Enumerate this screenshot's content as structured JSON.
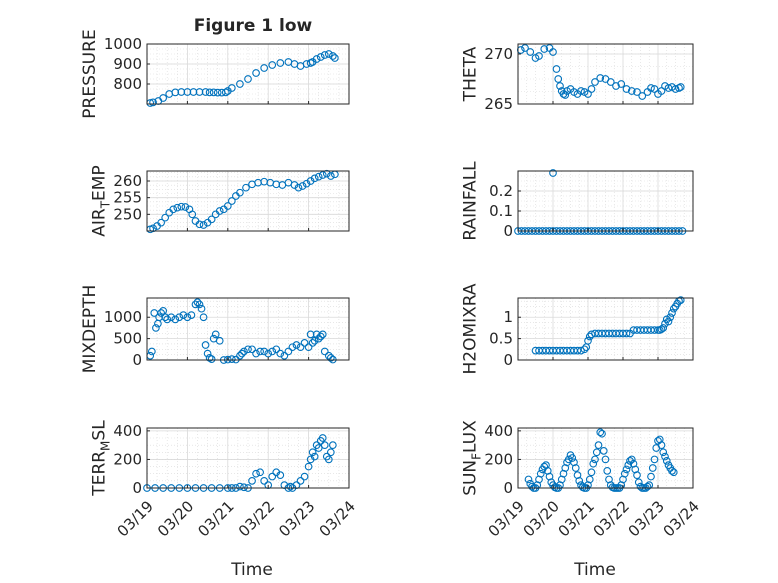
{
  "figure": {
    "title": "Figure 1 low",
    "xlabel_left": "Time",
    "xlabel_right": "Time",
    "x_tick_labels": [
      "03/19",
      "03/20",
      "03/21",
      "03/22",
      "03/23",
      "03/24"
    ],
    "marker_color": "#0072BD",
    "grid_color": "#d9d9d9"
  },
  "chart_data": [
    {
      "type": "scatter",
      "ylabel": "PRESSURE",
      "ylim": [
        700,
        1000
      ],
      "yticks": [
        800,
        900,
        1000
      ],
      "x": [
        0.08,
        0.15,
        0.28,
        0.4,
        0.55,
        0.7,
        0.85,
        1.0,
        1.15,
        1.3,
        1.45,
        1.55,
        1.65,
        1.75,
        1.85,
        1.95,
        2.0,
        2.1,
        2.3,
        2.5,
        2.7,
        2.9,
        3.1,
        3.3,
        3.5,
        3.65,
        3.8,
        3.95,
        4.05,
        4.1,
        4.2,
        4.3,
        4.4,
        4.5,
        4.6,
        4.65
      ],
      "y": [
        705,
        708,
        715,
        730,
        750,
        758,
        760,
        760,
        760,
        760,
        760,
        758,
        758,
        757,
        757,
        758,
        765,
        780,
        800,
        825,
        855,
        880,
        895,
        905,
        910,
        900,
        890,
        900,
        905,
        910,
        925,
        935,
        945,
        950,
        940,
        930
      ]
    },
    {
      "type": "scatter",
      "ylabel": "THETA",
      "ylim": [
        265,
        271
      ],
      "yticks": [
        265,
        270
      ],
      "x": [
        0.08,
        0.2,
        0.35,
        0.5,
        0.6,
        0.75,
        0.9,
        1.0,
        1.1,
        1.15,
        1.2,
        1.25,
        1.3,
        1.35,
        1.4,
        1.5,
        1.6,
        1.7,
        1.8,
        1.9,
        2.0,
        2.1,
        2.2,
        2.35,
        2.5,
        2.65,
        2.8,
        2.95,
        3.1,
        3.25,
        3.4,
        3.55,
        3.7,
        3.8,
        3.9,
        4.0,
        4.1,
        4.2,
        4.3,
        4.4,
        4.5,
        4.6,
        4.65
      ],
      "y": [
        270.4,
        270.6,
        270.2,
        269.6,
        269.8,
        270.5,
        270.6,
        270.2,
        268.5,
        267.5,
        266.8,
        266.3,
        266.0,
        265.9,
        266.3,
        266.5,
        266.2,
        266.0,
        266.3,
        266.2,
        266.0,
        266.5,
        267.2,
        267.6,
        267.5,
        267.2,
        266.8,
        267.0,
        266.5,
        266.3,
        266.2,
        265.8,
        266.2,
        266.6,
        266.5,
        266.0,
        266.3,
        266.8,
        266.6,
        266.7,
        266.5,
        266.6,
        266.7
      ]
    },
    {
      "type": "scatter",
      "ylabel": "AIR_TEMP",
      "ylim": [
        245,
        263
      ],
      "yticks": [
        250,
        255,
        260
      ],
      "x": [
        0.08,
        0.15,
        0.25,
        0.35,
        0.45,
        0.55,
        0.65,
        0.75,
        0.85,
        0.95,
        1.05,
        1.12,
        1.2,
        1.3,
        1.4,
        1.5,
        1.6,
        1.7,
        1.8,
        1.9,
        2.0,
        2.1,
        2.2,
        2.3,
        2.45,
        2.6,
        2.75,
        2.9,
        3.05,
        3.2,
        3.35,
        3.5,
        3.65,
        3.75,
        3.85,
        3.95,
        4.05,
        4.15,
        4.25,
        4.35,
        4.45,
        4.55,
        4.65
      ],
      "y": [
        245.5,
        245.8,
        246.5,
        247.5,
        249.0,
        250.5,
        251.5,
        252.0,
        252.3,
        252.2,
        251.5,
        250.0,
        248.0,
        247.0,
        246.8,
        247.5,
        248.5,
        250.0,
        251.0,
        251.5,
        252.5,
        254.0,
        255.5,
        256.5,
        258.0,
        259.0,
        259.5,
        259.8,
        259.5,
        259.0,
        258.8,
        259.5,
        258.8,
        258.0,
        258.5,
        259.2,
        260.0,
        260.8,
        261.3,
        261.8,
        262.2,
        261.5,
        262.0
      ]
    },
    {
      "type": "scatter",
      "ylabel": "RAINFALL",
      "ylim": [
        0,
        0.3
      ],
      "yticks": [
        0,
        0.1,
        0.2
      ],
      "x": [
        0.0,
        0.1,
        0.2,
        0.3,
        0.4,
        0.5,
        0.6,
        0.7,
        0.8,
        0.9,
        1.0,
        1.1,
        1.2,
        1.3,
        1.4,
        1.5,
        1.6,
        1.7,
        1.8,
        1.9,
        2.0,
        2.1,
        2.2,
        2.3,
        2.4,
        2.5,
        2.6,
        2.7,
        2.8,
        2.9,
        3.0,
        3.1,
        3.2,
        3.3,
        3.4,
        3.5,
        3.6,
        3.7,
        3.8,
        3.9,
        4.0,
        4.1,
        4.2,
        4.3,
        4.4,
        4.5,
        4.6,
        4.7,
        1.0
      ],
      "y": [
        0,
        0,
        0,
        0,
        0,
        0,
        0,
        0,
        0,
        0,
        0,
        0,
        0,
        0,
        0,
        0,
        0,
        0,
        0,
        0,
        0,
        0,
        0,
        0,
        0,
        0,
        0,
        0,
        0,
        0,
        0,
        0,
        0,
        0,
        0,
        0,
        0,
        0,
        0,
        0,
        0,
        0,
        0,
        0,
        0,
        0,
        0,
        0,
        0.29
      ]
    },
    {
      "type": "scatter",
      "ylabel": "MIXDEPTH",
      "ylim": [
        0,
        1450
      ],
      "yticks": [
        0,
        500,
        1000
      ],
      "x": [
        0.08,
        0.12,
        0.18,
        0.22,
        0.27,
        0.3,
        0.35,
        0.4,
        0.45,
        0.5,
        0.6,
        0.7,
        0.8,
        0.9,
        1.0,
        1.1,
        1.2,
        1.25,
        1.3,
        1.35,
        1.4,
        1.45,
        1.5,
        1.55,
        1.6,
        1.65,
        1.7,
        1.8,
        1.9,
        2.0,
        2.1,
        2.2,
        2.3,
        2.35,
        2.4,
        2.5,
        2.6,
        2.7,
        2.8,
        2.9,
        3.0,
        3.1,
        3.2,
        3.3,
        3.4,
        3.5,
        3.6,
        3.7,
        3.8,
        3.9,
        4.0,
        4.05,
        4.1,
        4.15,
        4.2,
        4.25,
        4.3,
        4.35,
        4.4,
        4.5,
        4.55,
        4.6
      ],
      "y": [
        100,
        200,
        1100,
        750,
        850,
        1000,
        1100,
        1150,
        1000,
        950,
        1000,
        950,
        1000,
        1050,
        1000,
        1050,
        1300,
        1350,
        1300,
        1200,
        1000,
        350,
        150,
        50,
        20,
        500,
        600,
        450,
        0,
        10,
        20,
        10,
        100,
        150,
        200,
        250,
        250,
        150,
        200,
        200,
        150,
        200,
        250,
        150,
        100,
        200,
        300,
        350,
        300,
        400,
        300,
        600,
        400,
        450,
        600,
        500,
        550,
        600,
        200,
        100,
        50,
        10
      ]
    },
    {
      "type": "scatter",
      "ylabel": "H2OMIXRA",
      "ylim": [
        0,
        1.45
      ],
      "yticks": [
        0,
        0.5,
        1
      ],
      "x": [
        0.5,
        0.6,
        0.7,
        0.8,
        0.9,
        1.0,
        1.1,
        1.2,
        1.3,
        1.4,
        1.5,
        1.6,
        1.7,
        1.8,
        1.9,
        1.95,
        2.0,
        2.05,
        2.1,
        2.2,
        2.3,
        2.4,
        2.5,
        2.6,
        2.7,
        2.8,
        2.9,
        3.0,
        3.1,
        3.2,
        3.3,
        3.4,
        3.5,
        3.6,
        3.7,
        3.8,
        3.9,
        4.0,
        4.05,
        4.1,
        4.15,
        4.2,
        4.25,
        4.3,
        4.35,
        4.4,
        4.45,
        4.5,
        4.55,
        4.6,
        4.65
      ],
      "y": [
        0.22,
        0.22,
        0.22,
        0.22,
        0.22,
        0.22,
        0.22,
        0.22,
        0.22,
        0.22,
        0.22,
        0.22,
        0.22,
        0.22,
        0.25,
        0.3,
        0.45,
        0.55,
        0.6,
        0.62,
        0.62,
        0.62,
        0.62,
        0.62,
        0.62,
        0.62,
        0.62,
        0.62,
        0.62,
        0.62,
        0.7,
        0.7,
        0.7,
        0.7,
        0.7,
        0.7,
        0.7,
        0.7,
        0.7,
        0.72,
        0.75,
        0.85,
        0.95,
        0.9,
        1.0,
        1.1,
        1.2,
        1.25,
        1.32,
        1.38,
        1.4
      ]
    },
    {
      "type": "scatter",
      "ylabel": "TERR_MSL",
      "ylim": [
        0,
        420
      ],
      "yticks": [
        0,
        200,
        400
      ],
      "x": [
        0.0,
        0.2,
        0.4,
        0.6,
        0.8,
        1.0,
        1.2,
        1.4,
        1.6,
        1.8,
        2.0,
        2.1,
        2.2,
        2.3,
        2.4,
        2.5,
        2.6,
        2.7,
        2.8,
        2.9,
        3.0,
        3.1,
        3.2,
        3.3,
        3.4,
        3.5,
        3.55,
        3.6,
        3.7,
        3.8,
        3.9,
        4.0,
        4.05,
        4.1,
        4.15,
        4.2,
        4.25,
        4.3,
        4.35,
        4.4,
        4.45,
        4.5,
        4.55,
        4.6
      ],
      "y": [
        0,
        0,
        0,
        0,
        0,
        0,
        0,
        0,
        0,
        0,
        0,
        0,
        0,
        10,
        5,
        0,
        50,
        100,
        110,
        50,
        20,
        80,
        110,
        90,
        20,
        0,
        10,
        0,
        20,
        50,
        80,
        150,
        200,
        250,
        220,
        300,
        280,
        330,
        350,
        300,
        220,
        200,
        250,
        300
      ]
    },
    {
      "type": "scatter",
      "ylabel": "SUN_FLUX",
      "ylim": [
        0,
        420
      ],
      "yticks": [
        0,
        200,
        400
      ],
      "x": [
        0.3,
        0.35,
        0.4,
        0.45,
        0.5,
        0.55,
        0.6,
        0.65,
        0.7,
        0.75,
        0.8,
        0.85,
        0.9,
        0.95,
        1.0,
        1.05,
        1.1,
        1.15,
        1.2,
        1.25,
        1.3,
        1.35,
        1.4,
        1.45,
        1.5,
        1.55,
        1.6,
        1.65,
        1.7,
        1.75,
        1.8,
        1.85,
        1.9,
        1.95,
        2.0,
        2.05,
        2.1,
        2.15,
        2.2,
        2.25,
        2.3,
        2.35,
        2.4,
        2.45,
        2.5,
        2.55,
        2.6,
        2.65,
        2.7,
        2.75,
        2.8,
        2.85,
        2.9,
        2.95,
        3.0,
        3.05,
        3.1,
        3.15,
        3.2,
        3.25,
        3.3,
        3.35,
        3.4,
        3.45,
        3.5,
        3.55,
        3.6,
        3.65,
        3.7,
        3.75,
        3.8,
        3.85,
        3.9,
        3.95,
        4.0,
        4.05,
        4.1,
        4.15,
        4.2,
        4.25,
        4.3,
        4.35,
        4.4,
        4.45
      ],
      "y": [
        60,
        30,
        10,
        0,
        0,
        20,
        60,
        100,
        130,
        150,
        160,
        120,
        80,
        40,
        20,
        5,
        0,
        0,
        20,
        60,
        100,
        140,
        180,
        200,
        230,
        210,
        180,
        140,
        90,
        50,
        20,
        5,
        0,
        0,
        20,
        60,
        110,
        170,
        200,
        250,
        300,
        390,
        380,
        260,
        200,
        120,
        60,
        20,
        5,
        0,
        0,
        0,
        0,
        20,
        60,
        100,
        130,
        160,
        190,
        200,
        170,
        130,
        90,
        40,
        10,
        0,
        0,
        0,
        10,
        20,
        80,
        140,
        200,
        280,
        330,
        340,
        300,
        250,
        220,
        190,
        160,
        140,
        120,
        110
      ]
    }
  ]
}
